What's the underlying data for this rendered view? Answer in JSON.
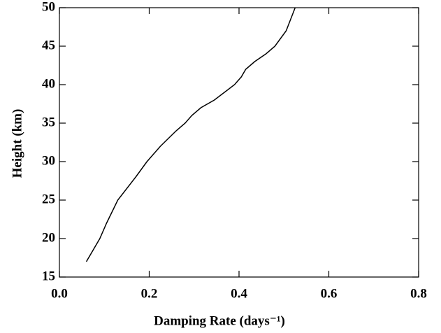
{
  "chart_data": {
    "type": "line",
    "xlabel": "Damping Rate (days⁻¹)",
    "ylabel": "Height (km)",
    "x": [
      0.06,
      0.09,
      0.105,
      0.13,
      0.17,
      0.195,
      0.225,
      0.26,
      0.28,
      0.295,
      0.315,
      0.345,
      0.39,
      0.405,
      0.415,
      0.435,
      0.46,
      0.48,
      0.505,
      0.525
    ],
    "series": [
      {
        "color": "#000000",
        "values": [
          17,
          20,
          22,
          25,
          28,
          30,
          32,
          34,
          35,
          36,
          37,
          38,
          40,
          41,
          42,
          43,
          44,
          45,
          47,
          50
        ]
      }
    ],
    "xlim": [
      0,
      0.8
    ],
    "ylim": [
      15,
      50
    ],
    "xticks": [
      {
        "value": 0,
        "label": "0.0"
      },
      0.2,
      0.4,
      0.6,
      0.8
    ],
    "yticks": [
      15,
      20,
      25,
      30,
      35,
      40,
      45,
      50
    ]
  }
}
